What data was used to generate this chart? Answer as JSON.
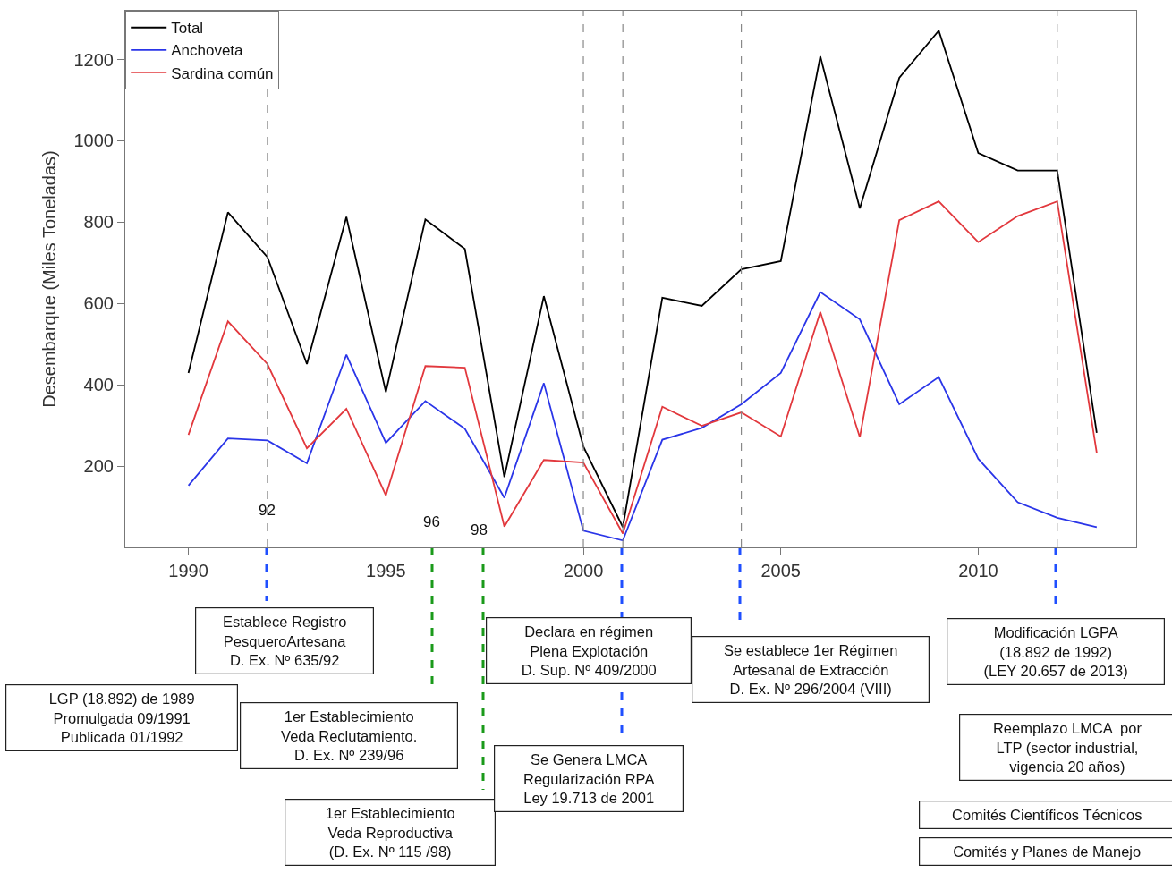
{
  "chart_data": {
    "type": "line",
    "ylabel": "Desembarque (Miles Toneladas)",
    "x": [
      1990,
      1991,
      1992,
      1993,
      1994,
      1995,
      1996,
      1997,
      1998,
      1999,
      2000,
      2001,
      2002,
      2003,
      2004,
      2005,
      2006,
      2007,
      2008,
      2009,
      2010,
      2011,
      2012,
      2013
    ],
    "series": [
      {
        "name": "Total",
        "color": "#000000",
        "values": [
          429,
          824,
          714,
          451,
          813,
          382,
          807,
          734,
          173,
          618,
          248,
          50,
          614,
          594,
          684,
          704,
          1208,
          834,
          1155,
          1271,
          970,
          927,
          927,
          282
        ]
      },
      {
        "name": "Anchoveta",
        "color": "#2a35e8",
        "values": [
          152,
          268,
          263,
          207,
          474,
          257,
          360,
          292,
          122,
          404,
          41,
          17,
          265,
          294,
          352,
          429,
          628,
          561,
          352,
          419,
          218,
          111,
          73,
          50
        ]
      },
      {
        "name": "Sardina común",
        "color": "#e2383d",
        "values": [
          277,
          556,
          451,
          244,
          341,
          128,
          446,
          442,
          51,
          215,
          209,
          34,
          346,
          299,
          332,
          273,
          579,
          271,
          805,
          851,
          751,
          815,
          851,
          233
        ]
      }
    ],
    "xlim": [
      1988.4,
      2014.0
    ],
    "xticks": [
      1990,
      1995,
      2000,
      2005,
      2010
    ],
    "ylim": [
      0,
      1320
    ],
    "yticks": [
      200,
      400,
      600,
      800,
      1000,
      1200
    ],
    "legend": "top left",
    "marker": "none",
    "line_style": "solid",
    "ref_lines": [
      {
        "axis": "x",
        "value": 1992,
        "color": "#888888",
        "line_style": "dashed"
      },
      {
        "axis": "x",
        "value": 2000,
        "color": "#888888",
        "line_style": "dashed"
      },
      {
        "axis": "x",
        "value": 2001,
        "color": "#888888",
        "line_style": "dashed"
      },
      {
        "axis": "x",
        "value": 2004,
        "color": "#888888",
        "line_style": "dashed"
      },
      {
        "axis": "x",
        "value": 2012,
        "color": "#888888",
        "line_style": "dashed"
      }
    ],
    "annotations": [
      "92",
      "96",
      "98",
      "Establece Registro\nPesqueroArtesana\nD. Ex. Nº 635/92",
      "LGP (18.892) de 1989\nPromulgada 09/1991\nPublicada 01/1992",
      "1er Establecimiento\nVeda Reclutamiento.\nD. Ex. Nº 239/96",
      "1er Establecimiento\nVeda Reproductiva\n(D. Ex. Nº 115 /98)",
      "Declara en régimen\nPlena Explotación\nD. Sup. Nº 409/2000",
      "Se Genera LMCA\nRegularización RPA\nLey 19.713 de 2001",
      "Se establece 1er Régimen\nArtesanal de Extracción\nD. Ex. Nº 296/2004 (VIII)",
      "Modificación LGPA\n(18.892 de 1992)\n(LEY 20.657 de 2013)",
      "Reemplazo LMCA  por\nLTP (sector industrial,\nvigencia 20 años)",
      "Comités Científicos Técnicos",
      "Comités y Planes de Manejo"
    ]
  }
}
